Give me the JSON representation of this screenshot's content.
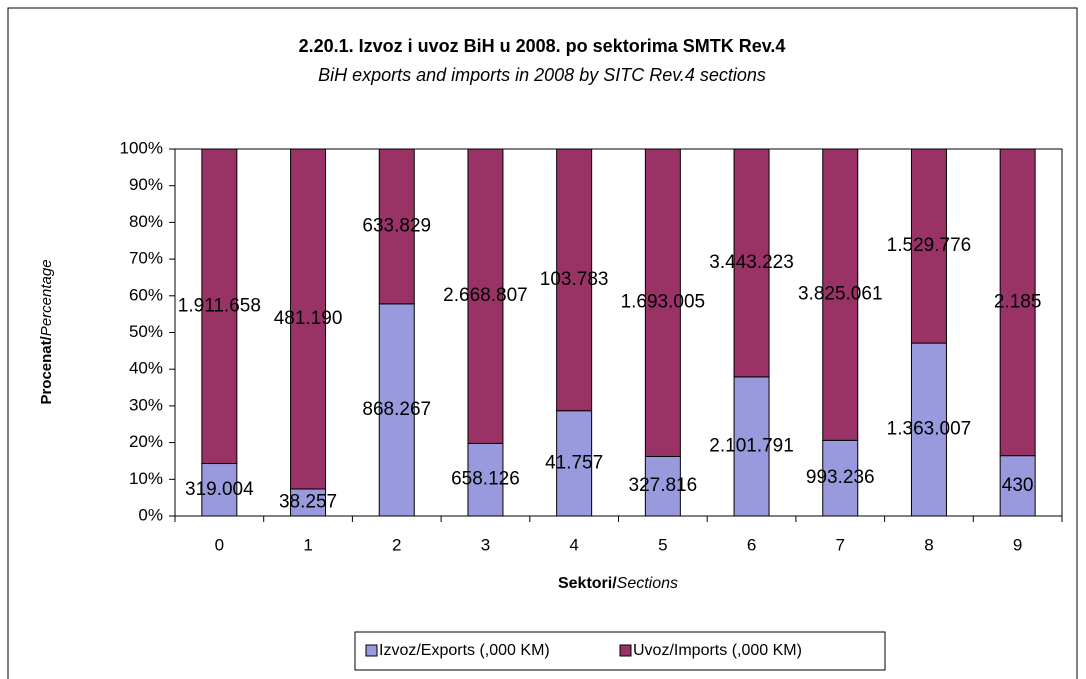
{
  "chart_data": {
    "type": "bar",
    "stacking": "percent",
    "title": "2.20.1. Izvoz i uvoz BiH u 2008. po sektorima SMTK Rev.4",
    "subtitle": "BiH exports and imports in 2008 by SITC Rev.4 sections",
    "ylabel": [
      "Procenat/",
      "Percentage"
    ],
    "xlabel": [
      "Sektori/",
      "Sections"
    ],
    "categories": [
      "0",
      "1",
      "2",
      "3",
      "4",
      "5",
      "6",
      "7",
      "8",
      "9"
    ],
    "series": [
      {
        "name": "Izvoz/Exports (,000 KM)",
        "color": "#9999dd",
        "values": [
          319004,
          38257,
          868267,
          658126,
          41757,
          327816,
          2101791,
          993236,
          1363007,
          430
        ],
        "value_labels": [
          "319.004",
          "38.257",
          "868.267",
          "658.126",
          "41.757",
          "327.816",
          "2.101.791",
          "993.236",
          "1.363.007",
          "430"
        ]
      },
      {
        "name": "Uvoz/Imports (,000 KM)",
        "color": "#993366",
        "values": [
          1911658,
          481190,
          633829,
          2668807,
          103783,
          1693005,
          3443223,
          3825061,
          1529776,
          2185
        ],
        "value_labels": [
          "1.911.658",
          "481.190",
          "633.829",
          "2.668.807",
          "103.783",
          "1.693.005",
          "3.443.223",
          "3.825.061",
          "1.529.776",
          "2.185"
        ]
      }
    ],
    "ylim": [
      0,
      100
    ],
    "yticks": [
      {
        "value": 0,
        "label": "0%"
      },
      {
        "value": 10,
        "label": "10%"
      },
      {
        "value": 20,
        "label": "20%"
      },
      {
        "value": 30,
        "label": "30%"
      },
      {
        "value": 40,
        "label": "40%"
      },
      {
        "value": 50,
        "label": "50%"
      },
      {
        "value": 60,
        "label": "60%"
      },
      {
        "value": 70,
        "label": "70%"
      },
      {
        "value": 80,
        "label": "80%"
      },
      {
        "value": 90,
        "label": "90%"
      },
      {
        "value": 100,
        "label": "100%"
      }
    ],
    "grid": false,
    "legend": "bottom"
  }
}
